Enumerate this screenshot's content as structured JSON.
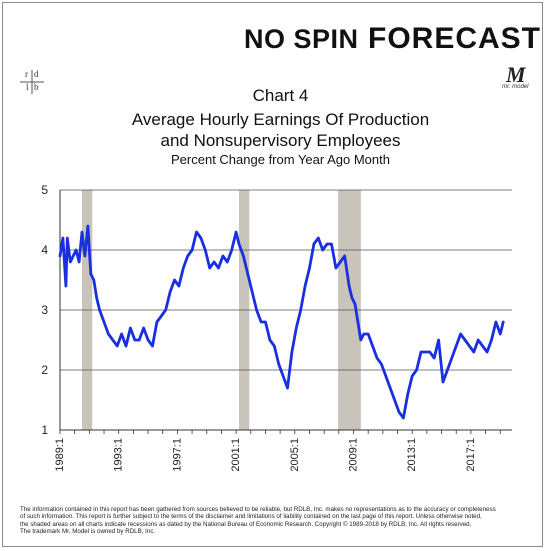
{
  "brand": {
    "left": "NO SPIN",
    "right": "FORECAST",
    "ring_color": "#2a9d3a"
  },
  "logo_rdlb": [
    "r",
    "d",
    "l",
    "b"
  ],
  "mr_model": {
    "mark": "M",
    "tagline": "mr. model"
  },
  "header": {
    "line1": "Chart 4",
    "line2": "Average Hourly Earnings Of Production",
    "line3": "and Nonsupervisory Employees",
    "line4": "Percent Change from Year Ago Month"
  },
  "chart_data": {
    "type": "line",
    "title": "Average Hourly Earnings Of Production and Nonsupervisory Employees",
    "subtitle": "Percent Change from Year Ago Month",
    "xlim": [
      1989.0,
      2019.8
    ],
    "ylim": [
      1,
      5
    ],
    "y_ticks": [
      1,
      2,
      3,
      4,
      5
    ],
    "x_tick_labels": [
      "1989:1",
      "1993:1",
      "1997:1",
      "2001:1",
      "2005:1",
      "2009:1",
      "2013:1",
      "2017:1"
    ],
    "x_ticks": [
      1989,
      1993,
      1997,
      2001,
      2005,
      2009,
      2013,
      2017
    ],
    "grid": "horizontal",
    "line_color": "#1a2fe0",
    "recession_color": "#c8c4bc",
    "recessions": [
      [
        1990.5,
        1991.2
      ],
      [
        2001.2,
        2001.9
      ],
      [
        2007.95,
        2009.5
      ]
    ],
    "series": [
      {
        "x": [
          1989.0,
          1989.2,
          1989.4,
          1989.5,
          1989.7,
          1989.9,
          1990.1,
          1990.3,
          1990.5,
          1990.7,
          1990.9,
          1991.1,
          1991.3,
          1991.5,
          1991.7,
          1992.0,
          1992.3,
          1992.6,
          1992.9,
          1993.2,
          1993.5,
          1993.8,
          1994.1,
          1994.4,
          1994.7,
          1995.0,
          1995.3,
          1995.6,
          1995.9,
          1996.2,
          1996.5,
          1996.8,
          1997.1,
          1997.4,
          1997.7,
          1998.0,
          1998.3,
          1998.6,
          1998.9,
          1999.2,
          1999.5,
          1999.8,
          2000.1,
          2000.4,
          2000.7,
          2001.0,
          2001.2,
          2001.5,
          2001.8,
          2002.1,
          2002.4,
          2002.7,
          2003.0,
          2003.3,
          2003.6,
          2003.9,
          2004.2,
          2004.5,
          2004.8,
          2005.1,
          2005.4,
          2005.7,
          2006.0,
          2006.3,
          2006.6,
          2006.9,
          2007.2,
          2007.5,
          2007.8,
          2008.1,
          2008.4,
          2008.7,
          2008.9,
          2009.1,
          2009.3,
          2009.5,
          2009.7,
          2010.0,
          2010.3,
          2010.6,
          2010.9,
          2011.2,
          2011.5,
          2011.8,
          2012.1,
          2012.4,
          2012.7,
          2013.0,
          2013.3,
          2013.6,
          2013.9,
          2014.2,
          2014.5,
          2014.8,
          2015.1,
          2015.4,
          2015.7,
          2016.0,
          2016.3,
          2016.6,
          2016.9,
          2017.2,
          2017.5,
          2017.8,
          2018.1,
          2018.4,
          2018.7,
          2019.0,
          2019.2
        ],
        "y": [
          3.9,
          4.2,
          3.4,
          4.2,
          3.8,
          3.9,
          4.0,
          3.8,
          4.3,
          3.9,
          4.4,
          3.6,
          3.5,
          3.2,
          3.0,
          2.8,
          2.6,
          2.5,
          2.4,
          2.6,
          2.4,
          2.7,
          2.5,
          2.5,
          2.7,
          2.5,
          2.4,
          2.8,
          2.9,
          3.0,
          3.3,
          3.5,
          3.4,
          3.7,
          3.9,
          4.0,
          4.3,
          4.2,
          4.0,
          3.7,
          3.8,
          3.7,
          3.9,
          3.8,
          4.0,
          4.3,
          4.1,
          3.9,
          3.6,
          3.3,
          3.0,
          2.8,
          2.8,
          2.5,
          2.4,
          2.1,
          1.9,
          1.7,
          2.3,
          2.7,
          3.0,
          3.4,
          3.7,
          4.1,
          4.2,
          4.0,
          4.1,
          4.1,
          3.7,
          3.8,
          3.9,
          3.4,
          3.2,
          3.1,
          2.8,
          2.5,
          2.6,
          2.6,
          2.4,
          2.2,
          2.1,
          1.9,
          1.7,
          1.5,
          1.3,
          1.2,
          1.6,
          1.9,
          2.0,
          2.3,
          2.3,
          2.3,
          2.2,
          2.5,
          1.8,
          2.0,
          2.2,
          2.4,
          2.6,
          2.5,
          2.4,
          2.3,
          2.5,
          2.4,
          2.3,
          2.5,
          2.8,
          2.6,
          2.8
        ]
      }
    ]
  },
  "disclaimer": {
    "line1": "The information contained in this report has been gathered from sources believed to be reliable, but RDLB, Inc. makes no representations as to the accuracy or completeness",
    "line2": "of such information. This report is further subject to the terms of the disclaimer and limitations of liability contained on the last page of this report. Unless otherwise noted,",
    "line3": "the shaded areas on all charts indicate recessions as dated by the National Bureau of Economic Research. Copyright © 1989-2018 by RDLB, Inc. All rights reserved.",
    "line4": "The trademark Mr. Model is owned by RDLB, Inc."
  }
}
